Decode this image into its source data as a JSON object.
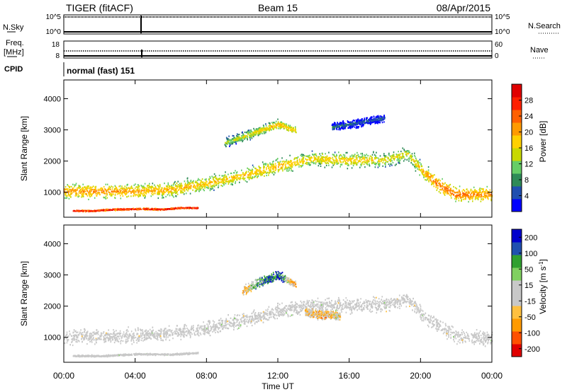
{
  "header": {
    "station": "TIGER (fitACF)",
    "beam": "Beam 15",
    "date": "08/Apr/2015"
  },
  "strip_labels": {
    "nsky": "N.Sky",
    "nsearch": "N.Search",
    "freq_line1": "Freq.",
    "freq_line2": "[MHz]",
    "nave": "Nave",
    "cpid": "CPID",
    "cpid_value": "normal (fast) 151",
    "nsky_ticks": [
      "10^5",
      "10^0"
    ],
    "nsearch_ticks": [
      "10^5",
      "10^0"
    ],
    "freq_ticks": [
      "18",
      "8"
    ],
    "nave_ticks": [
      "60",
      "0"
    ]
  },
  "x_axis": {
    "label": "Time UT",
    "ticks": [
      "00:00",
      "04:00",
      "08:00",
      "12:00",
      "16:00",
      "20:00",
      "00:00"
    ]
  },
  "colors": {
    "power_scale": [
      "#0000ff",
      "#1f4fb0",
      "#2e8b57",
      "#66cd66",
      "#c8d800",
      "#ffd000",
      "#ff9a00",
      "#ff6000",
      "#ff2000",
      "#e00000"
    ],
    "velocity_scale": [
      "#e00000",
      "#ff5000",
      "#ff9a00",
      "#ffc040",
      "#c8c8c8",
      "#c8c8c8",
      "#80d060",
      "#30a030",
      "#2050b0",
      "#0000cc"
    ],
    "ground_scatter": "#c8c8c8"
  },
  "chart_data": [
    {
      "type": "heatmap",
      "title": "Power",
      "ylabel": "Slant Range [km]",
      "xlabel": "",
      "x_unit": "hours UT",
      "xlim": [
        0,
        24
      ],
      "ylim": [
        200,
        4600
      ],
      "y_ticks": [
        1000,
        2000,
        3000,
        4000
      ],
      "colorbar": {
        "label": "Power [dB]",
        "range": [
          0,
          32
        ],
        "ticks": [
          4,
          8,
          12,
          16,
          20,
          24,
          28
        ]
      },
      "features": [
        {
          "name": "main scatter band",
          "t": [
            0,
            2,
            4,
            6,
            8,
            10,
            12,
            14,
            16,
            18,
            19.3,
            20,
            21,
            22,
            24
          ],
          "range_km": [
            1050,
            1050,
            1050,
            1100,
            1300,
            1550,
            1850,
            2100,
            2050,
            2050,
            2250,
            1750,
            1250,
            950,
            950
          ],
          "power_db": [
            22,
            22,
            21,
            20,
            19,
            19,
            20,
            18,
            19,
            17,
            16,
            20,
            24,
            24,
            22
          ]
        },
        {
          "name": "near range echoes",
          "t": [
            0.5,
            1.5,
            2.5,
            3.5,
            4.5,
            5.5,
            6.5,
            7.5
          ],
          "range_km": [
            430,
            420,
            460,
            480,
            490,
            470,
            520,
            520
          ],
          "power_db": [
            30,
            30,
            30,
            30,
            30,
            30,
            30,
            30
          ]
        },
        {
          "name": "high range patch",
          "t": [
            9,
            10,
            11,
            12,
            13
          ],
          "range_km": [
            2600,
            2800,
            3000,
            3200,
            3000
          ],
          "power_db": [
            14,
            16,
            18,
            20,
            18
          ]
        },
        {
          "name": "far range patch",
          "t": [
            15,
            16,
            17,
            18
          ],
          "range_km": [
            3100,
            3200,
            3300,
            3400
          ],
          "power_db": [
            8,
            7,
            6,
            6
          ]
        }
      ]
    },
    {
      "type": "heatmap",
      "title": "Velocity",
      "ylabel": "Slant Range [km]",
      "xlabel": "Time UT",
      "x_unit": "hours UT",
      "xlim": [
        0,
        24
      ],
      "ylim": [
        200,
        4600
      ],
      "y_ticks": [
        1000,
        2000,
        3000,
        4000
      ],
      "colorbar": {
        "label": "Velocity [m s^-1]",
        "range": [
          -250,
          250
        ],
        "ticks": [
          200,
          100,
          50,
          15,
          -15,
          -50,
          -100,
          -200
        ]
      },
      "features": [
        {
          "name": "ground scatter band",
          "t": [
            0,
            4,
            8,
            12,
            14,
            16,
            18,
            19.3,
            20,
            22,
            24
          ],
          "range_km": [
            1050,
            1050,
            1300,
            1850,
            2050,
            2050,
            2050,
            2250,
            1750,
            1050,
            1000
          ],
          "velocity": [
            0,
            0,
            0,
            0,
            0,
            0,
            0,
            0,
            0,
            0,
            0
          ]
        },
        {
          "name": "near range ground scatter",
          "t": [
            0.5,
            2,
            4,
            6,
            7.5
          ],
          "range_km": [
            430,
            420,
            480,
            470,
            520
          ],
          "velocity": [
            0,
            0,
            0,
            0,
            0
          ]
        },
        {
          "name": "mixed velocity patch",
          "t": [
            10,
            11,
            12,
            13
          ],
          "range_km": [
            2500,
            2800,
            3000,
            2700
          ],
          "velocity": [
            -80,
            120,
            200,
            -150
          ]
        },
        {
          "name": "negative velocity patch",
          "t": [
            13.5,
            14.5,
            15.5
          ],
          "range_km": [
            1800,
            1750,
            1700
          ],
          "velocity": [
            -50,
            -60,
            -40
          ]
        }
      ]
    }
  ]
}
